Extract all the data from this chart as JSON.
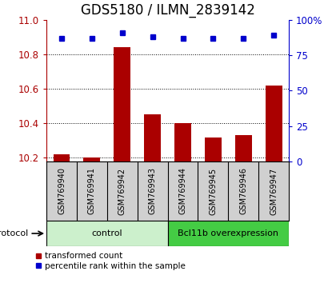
{
  "title": "GDS5180 / ILMN_2839142",
  "samples": [
    "GSM769940",
    "GSM769941",
    "GSM769942",
    "GSM769943",
    "GSM769944",
    "GSM769945",
    "GSM769946",
    "GSM769947"
  ],
  "red_bars": [
    10.22,
    10.2,
    10.84,
    10.45,
    10.4,
    10.32,
    10.33,
    10.62
  ],
  "blue_dots": [
    87,
    87,
    91,
    88,
    87,
    87,
    87,
    89
  ],
  "ylim_left": [
    10.18,
    11.0
  ],
  "ylim_right": [
    0,
    100
  ],
  "yticks_left": [
    10.2,
    10.4,
    10.6,
    10.8,
    11.0
  ],
  "yticks_right": [
    0,
    25,
    50,
    75,
    100
  ],
  "bar_color": "#aa0000",
  "dot_color": "#0000cc",
  "bar_bottom": 10.18,
  "control_label": "control",
  "treatment_label": "Bcl11b overexpression",
  "protocol_label": "protocol",
  "legend_red": "transformed count",
  "legend_blue": "percentile rank within the sample",
  "control_color": "#ccf0cc",
  "treatment_color": "#44cc44",
  "n_control": 4,
  "n_treatment": 4,
  "title_fontsize": 12,
  "tick_fontsize": 8.5,
  "sample_fontsize": 7
}
